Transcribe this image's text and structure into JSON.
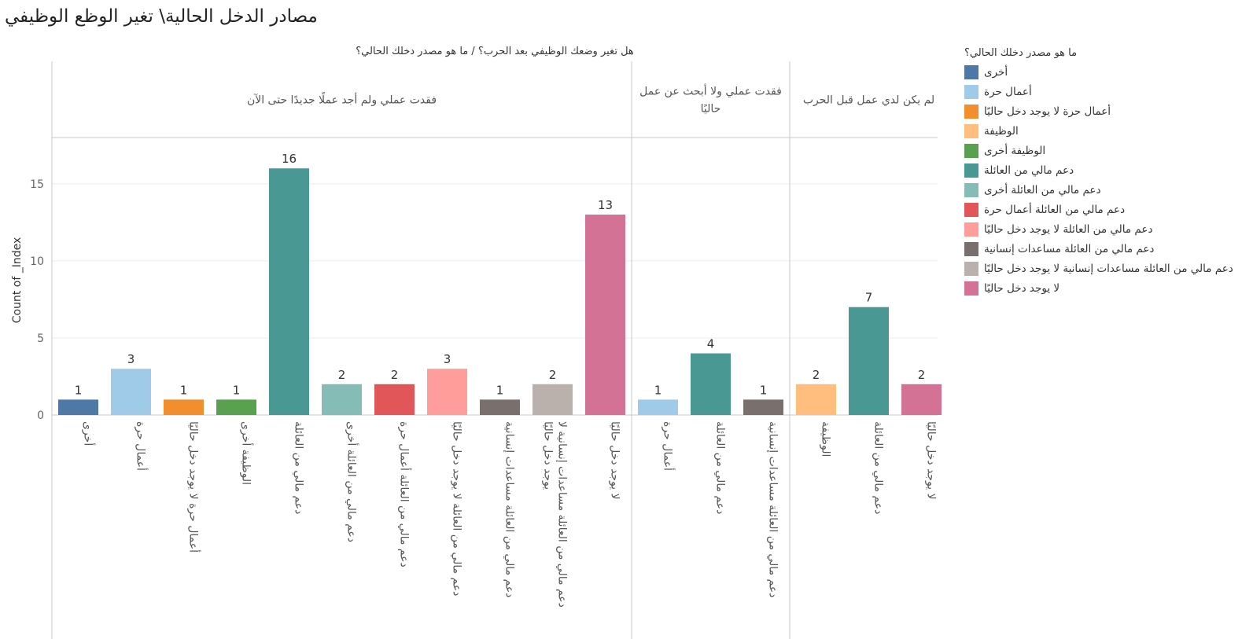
{
  "title": "مصادر الدخل الحالية\\ تغير الوظع الوظيفي",
  "colors": {
    "أخرى": "#4e79a7",
    "أعمال حرة": "#a0cbe8",
    "أعمال حرة لا يوجد دخل حاليًا": "#f28e2b",
    "الوظيفة": "#ffbe7d",
    "الوظيفة أخرى": "#59a14f",
    "دعم مالي من العائلة": "#499894",
    "دعم مالي من العائلة أخرى": "#86bcb6",
    "دعم مالي من العائلة أعمال حرة": "#e15759",
    "دعم مالي من العائلة لا يوجد دخل حاليًا": "#ff9d9a",
    "دعم مالي من العائلة مساعدات إنسانية": "#79706e",
    "دعم مالي من العائلة مساعدات إنسانية لا يوجد دخل حاليًا": "#bab0ac",
    "لا يوجد دخل حاليًا": "#d37295"
  },
  "chart_data": {
    "type": "bar",
    "title": "مصادر الدخل الحالية\\ تغير الوظع الوظيفي",
    "column_header": "هل تغير وضعك الوظيفي بعد الحرب؟  /  ما هو مصدر دخلك الحالي؟",
    "ylabel": "Count of _Index",
    "ylim": [
      0,
      18
    ],
    "yticks": [
      0,
      5,
      10,
      15
    ],
    "grid": true,
    "legend_title": "ما هو مصدر دخلك الحالي؟",
    "legend_position": "right",
    "legend": [
      "أخرى",
      "أعمال حرة",
      "أعمال حرة لا يوجد دخل حاليًا",
      "الوظيفة",
      "الوظيفة أخرى",
      "دعم مالي من العائلة",
      "دعم مالي من العائلة أخرى",
      "دعم مالي من العائلة أعمال حرة",
      "دعم مالي من العائلة لا يوجد دخل حاليًا",
      "دعم مالي من العائلة مساعدات إنسانية",
      "دعم مالي من العائلة مساعدات إنسانية لا يوجد دخل حاليًا",
      "لا يوجد دخل حاليًا"
    ],
    "panels": [
      {
        "label_lines": [
          "فقدت عملي ولم أجد عملًا جديدًا حتى الآن"
        ],
        "categories": [
          "أخرى",
          "أعمال حرة",
          "أعمال حرة لا يوجد دخل حاليًا",
          "الوظيفة أخرى",
          "دعم مالي من العائلة",
          "دعم مالي من العائلة أخرى",
          "دعم مالي من العائلة أعمال حرة",
          "دعم مالي من العائلة لا يوجد دخل حاليًا",
          "دعم مالي من العائلة مساعدات إنسانية",
          "دعم مالي من العائلة مساعدات إنسانية لا يوجد دخل حاليًا",
          "لا يوجد دخل حاليًا"
        ],
        "tick_lines": [
          [
            "أخرى"
          ],
          [
            "أعمال حرة"
          ],
          [
            "أعمال حرة لا يوجد دخل حاليًا"
          ],
          [
            "الوظيفة أخرى"
          ],
          [
            "دعم مالي من العائلة"
          ],
          [
            "دعم مالي من العائلة أخرى"
          ],
          [
            "دعم مالي من العائلة أعمال حرة"
          ],
          [
            "دعم مالي من العائلة لا يوجد دخل حاليًا"
          ],
          [
            "دعم مالي من العائلة مساعدات إنسانية"
          ],
          [
            "دعم مالي من العائلة مساعدات إنسانية لا",
            "يوجد دخل حاليًا"
          ],
          [
            "لا يوجد دخل حاليًا"
          ]
        ],
        "values": [
          1,
          3,
          1,
          1,
          16,
          2,
          2,
          3,
          1,
          2,
          13
        ]
      },
      {
        "label_lines": [
          "فقدت عملي ولا أبحث عن عمل",
          "حاليًا"
        ],
        "categories": [
          "أعمال حرة",
          "دعم مالي من العائلة",
          "دعم مالي من العائلة مساعدات إنسانية"
        ],
        "tick_lines": [
          [
            "أعمال حرة"
          ],
          [
            "دعم مالي من العائلة"
          ],
          [
            "دعم مالي من العائلة مساعدات إنسانية"
          ]
        ],
        "values": [
          1,
          4,
          1
        ]
      },
      {
        "label_lines": [
          "لم يكن لدي عمل قبل الحرب"
        ],
        "categories": [
          "الوظيفة",
          "دعم مالي من العائلة",
          "لا يوجد دخل حاليًا"
        ],
        "tick_lines": [
          [
            "الوظيفة"
          ],
          [
            "دعم مالي من العائلة"
          ],
          [
            "لا يوجد دخل حاليًا"
          ]
        ],
        "values": [
          2,
          7,
          2
        ]
      }
    ]
  }
}
